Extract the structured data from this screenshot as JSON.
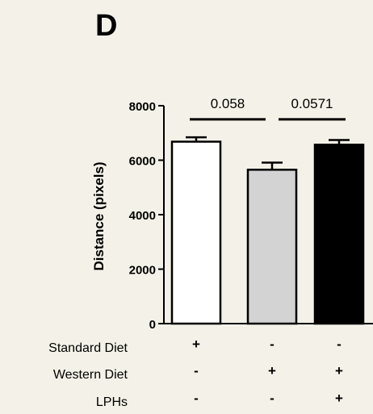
{
  "panel_label": "D",
  "chart_data": {
    "type": "bar",
    "ylabel": "Distance (pixels)",
    "ylim": [
      0,
      8000
    ],
    "yticks": [
      "0",
      "2000",
      "4000",
      "6000",
      "8000"
    ],
    "ytick_values": [
      0,
      2000,
      4000,
      6000,
      8000
    ],
    "categories": [
      "Standard Diet",
      "Western Diet",
      "Western Diet + LPHs"
    ],
    "values": [
      6680,
      5650,
      6570
    ],
    "errors": [
      160,
      260,
      170
    ],
    "bar_colors": [
      "#ffffff",
      "#d3d3d3",
      "#000000"
    ],
    "annotations": [
      {
        "text": "0.058",
        "from_bar": 0,
        "to_bar": 1,
        "y": 7500
      },
      {
        "text": "0.0571",
        "from_bar": 1,
        "to_bar": 2,
        "y": 7500
      }
    ],
    "condition_rows": [
      {
        "label": "Standard Diet",
        "marks": [
          "+",
          "-",
          "-"
        ]
      },
      {
        "label": "Western Diet",
        "marks": [
          "-",
          "+",
          "+"
        ]
      },
      {
        "label": "LPHs",
        "marks": [
          "-",
          "-",
          "+"
        ]
      }
    ]
  }
}
